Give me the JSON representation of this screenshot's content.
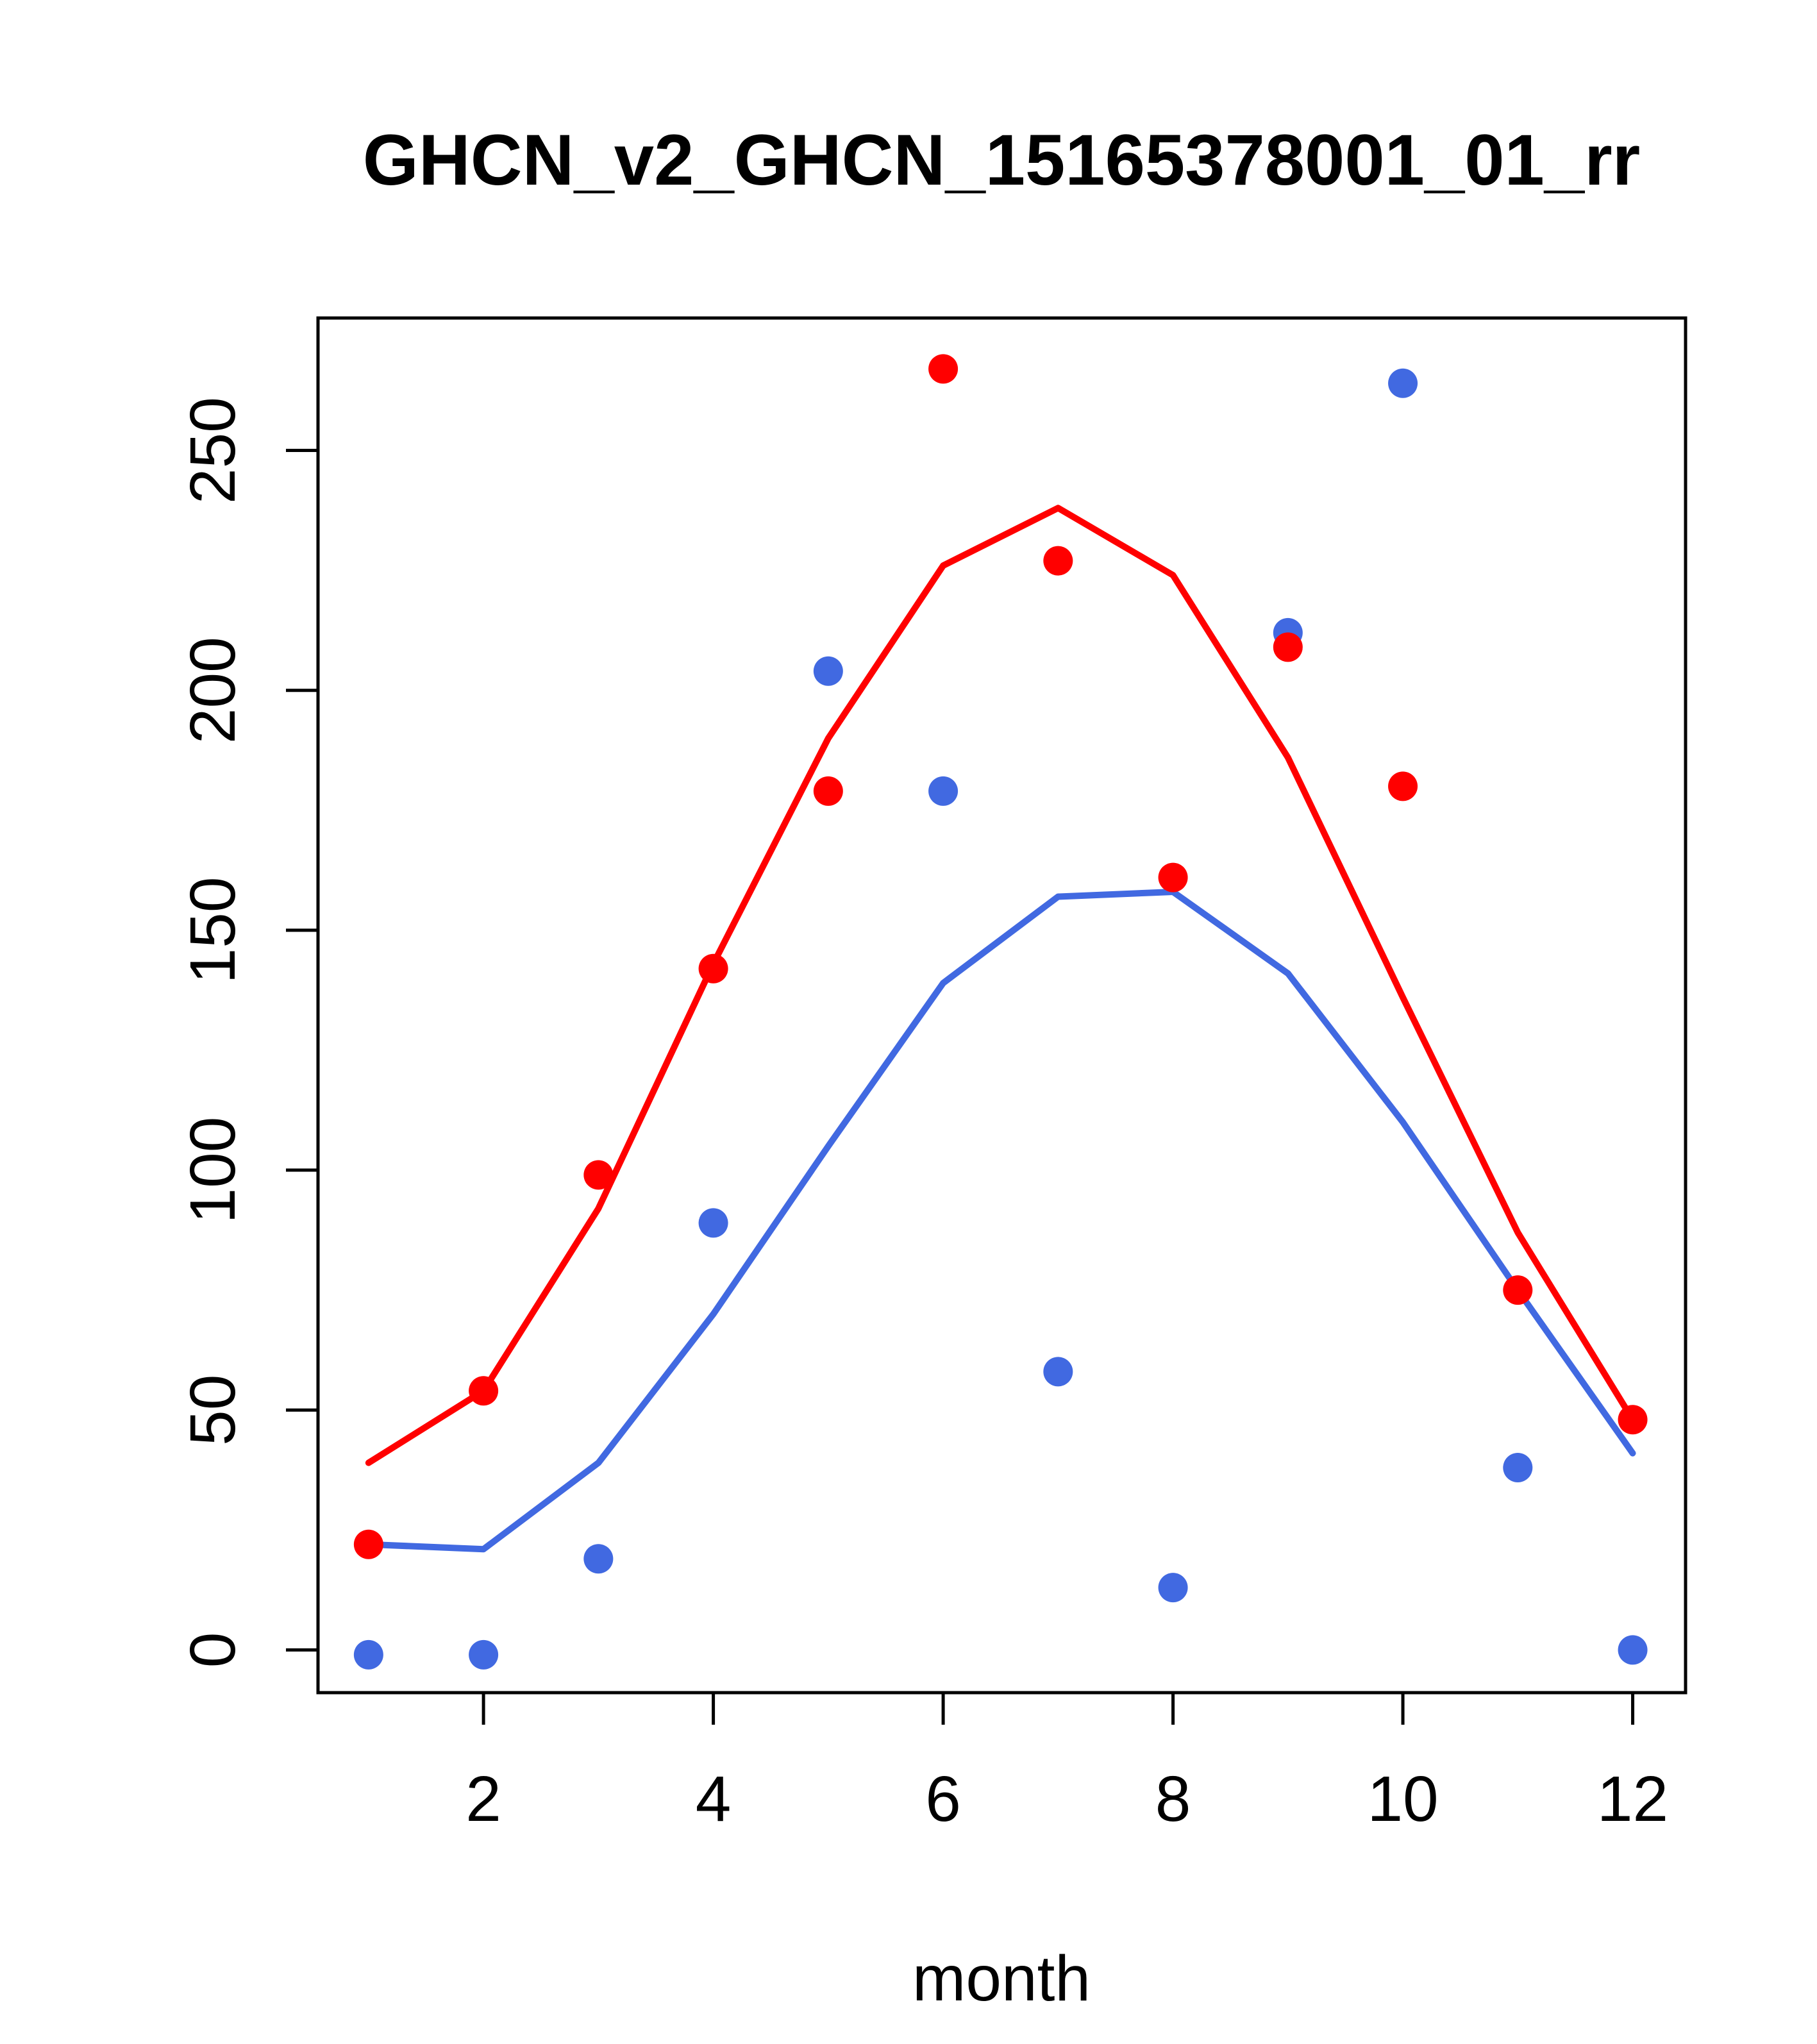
{
  "chart_data": {
    "type": "scatter",
    "title": "GHCN_v2_GHCN_15165378001_01_rr",
    "xlabel": "month",
    "ylabel": "",
    "xlim": [
      0.56,
      12.46
    ],
    "ylim": [
      -8.9,
      277.6
    ],
    "x_ticks": [
      2,
      4,
      6,
      8,
      10,
      12
    ],
    "y_ticks": [
      0,
      50,
      100,
      150,
      200,
      250
    ],
    "grid": false,
    "legend": "none",
    "months": [
      1,
      2,
      3,
      4,
      5,
      6,
      7,
      8,
      9,
      10,
      11,
      12
    ],
    "series": [
      {
        "name": "blue-line",
        "kind": "line",
        "color": "#4169e1",
        "values": [
          22,
          21,
          39,
          70,
          105,
          139,
          157,
          158,
          141,
          110,
          75,
          41
        ]
      },
      {
        "name": "red-line",
        "kind": "line",
        "color": "#ff0000",
        "values": [
          39,
          54,
          92,
          143,
          190,
          226,
          238,
          224,
          186,
          136,
          87,
          48
        ]
      },
      {
        "name": "blue-points",
        "kind": "points",
        "color": "#4169e1",
        "values": [
          -1,
          -1,
          19,
          89,
          204,
          179,
          58,
          13,
          212,
          264,
          38,
          0
        ]
      },
      {
        "name": "red-points",
        "kind": "points",
        "color": "#ff0000",
        "values": [
          22,
          54,
          99,
          142,
          179,
          267,
          227,
          161,
          209,
          180,
          75,
          48
        ]
      }
    ],
    "colors": {
      "red": "#ff0000",
      "blue": "#4169e1",
      "axis": "#000000",
      "background": "#ffffff"
    }
  }
}
